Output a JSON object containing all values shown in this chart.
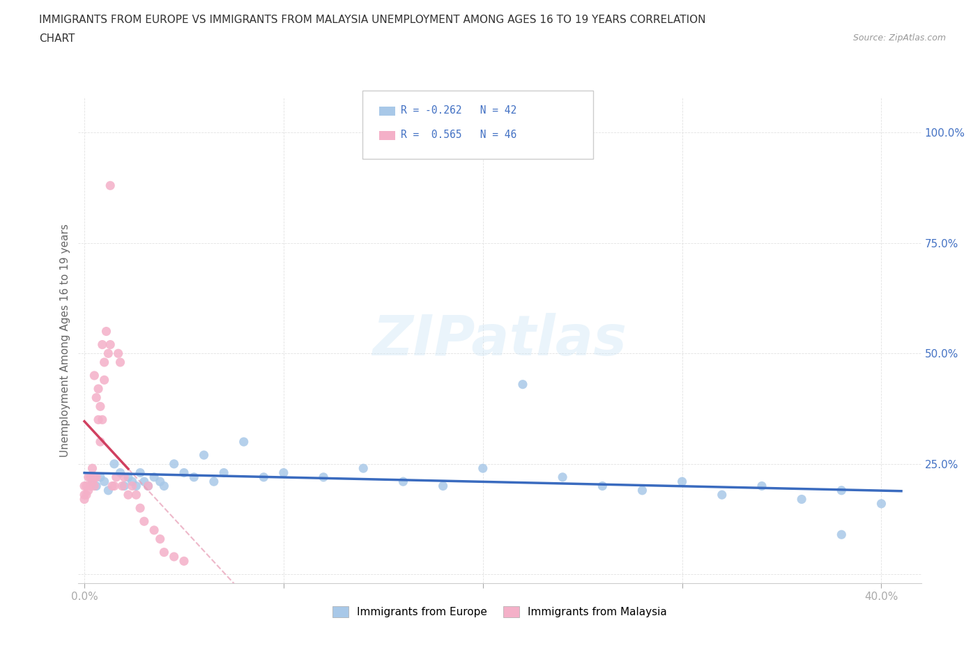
{
  "title_line1": "IMMIGRANTS FROM EUROPE VS IMMIGRANTS FROM MALAYSIA UNEMPLOYMENT AMONG AGES 16 TO 19 YEARS CORRELATION",
  "title_line2": "CHART",
  "source": "Source: ZipAtlas.com",
  "ylabel": "Unemployment Among Ages 16 to 19 years",
  "xlim": [
    -0.003,
    0.42
  ],
  "ylim": [
    -0.02,
    1.08
  ],
  "x_ticks": [
    0.0,
    0.1,
    0.2,
    0.3,
    0.4
  ],
  "x_tick_labels": [
    "0.0%",
    "",
    "",
    "",
    "40.0%"
  ],
  "y_ticks": [
    0.0,
    0.25,
    0.5,
    0.75,
    1.0
  ],
  "y_tick_labels": [
    "",
    "25.0%",
    "50.0%",
    "75.0%",
    "100.0%"
  ],
  "europe_R": -0.262,
  "europe_N": 42,
  "malaysia_R": 0.565,
  "malaysia_N": 46,
  "europe_color": "#a8c8e8",
  "malaysia_color": "#f4b0c8",
  "europe_line_color": "#3a6bbf",
  "malaysia_line_color": "#d04060",
  "watermark": "ZIPatlas",
  "background_color": "#ffffff",
  "grid_color": "#dddddd",
  "tick_color": "#4472c4",
  "title_color": "#333333",
  "axis_label_color": "#666666",
  "europe_scatter_x": [
    0.004,
    0.006,
    0.008,
    0.01,
    0.012,
    0.015,
    0.018,
    0.02,
    0.022,
    0.024,
    0.026,
    0.028,
    0.03,
    0.032,
    0.035,
    0.038,
    0.04,
    0.045,
    0.05,
    0.055,
    0.06,
    0.065,
    0.07,
    0.08,
    0.09,
    0.1,
    0.12,
    0.14,
    0.16,
    0.18,
    0.2,
    0.22,
    0.24,
    0.26,
    0.28,
    0.3,
    0.32,
    0.34,
    0.36,
    0.38,
    0.4,
    0.38
  ],
  "europe_scatter_y": [
    0.21,
    0.2,
    0.22,
    0.21,
    0.19,
    0.25,
    0.23,
    0.2,
    0.22,
    0.21,
    0.2,
    0.23,
    0.21,
    0.2,
    0.22,
    0.21,
    0.2,
    0.25,
    0.23,
    0.22,
    0.27,
    0.21,
    0.23,
    0.3,
    0.22,
    0.23,
    0.22,
    0.24,
    0.21,
    0.2,
    0.24,
    0.43,
    0.22,
    0.2,
    0.19,
    0.21,
    0.18,
    0.2,
    0.17,
    0.09,
    0.16,
    0.19
  ],
  "malaysia_scatter_x": [
    0.0,
    0.0,
    0.0,
    0.001,
    0.001,
    0.002,
    0.002,
    0.003,
    0.003,
    0.004,
    0.004,
    0.005,
    0.005,
    0.005,
    0.006,
    0.006,
    0.007,
    0.007,
    0.008,
    0.008,
    0.009,
    0.009,
    0.01,
    0.01,
    0.011,
    0.012,
    0.013,
    0.013,
    0.014,
    0.015,
    0.016,
    0.017,
    0.018,
    0.019,
    0.02,
    0.022,
    0.024,
    0.026,
    0.028,
    0.03,
    0.032,
    0.035,
    0.038,
    0.04,
    0.045,
    0.05
  ],
  "malaysia_scatter_y": [
    0.17,
    0.18,
    0.2,
    0.18,
    0.2,
    0.19,
    0.22,
    0.2,
    0.22,
    0.21,
    0.24,
    0.2,
    0.22,
    0.45,
    0.22,
    0.4,
    0.35,
    0.42,
    0.3,
    0.38,
    0.35,
    0.52,
    0.44,
    0.48,
    0.55,
    0.5,
    0.52,
    0.88,
    0.2,
    0.2,
    0.22,
    0.5,
    0.48,
    0.2,
    0.22,
    0.18,
    0.2,
    0.18,
    0.15,
    0.12,
    0.2,
    0.1,
    0.08,
    0.05,
    0.04,
    0.03
  ],
  "legend_R_europe": "R = -0.262   N = 42",
  "legend_R_malaysia": "R =  0.565   N = 46",
  "legend_europe_label": "Immigrants from Europe",
  "legend_malaysia_label": "Immigrants from Malaysia"
}
